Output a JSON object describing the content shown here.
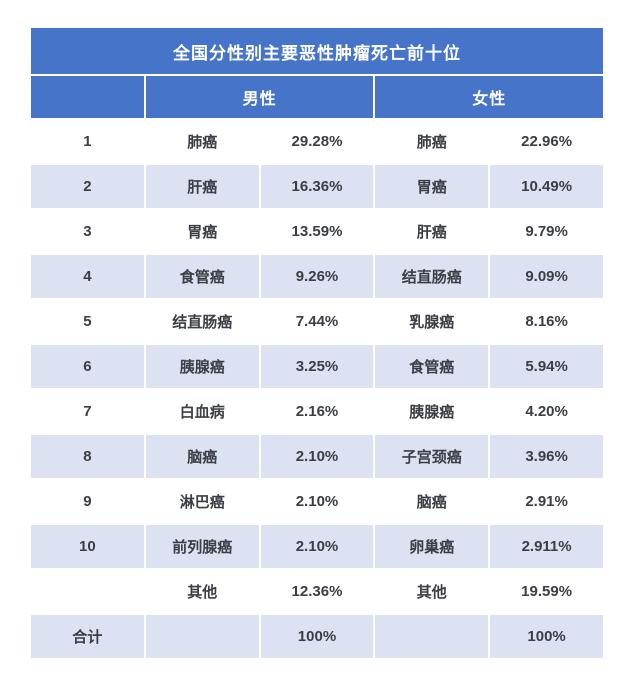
{
  "header": {
    "male": "男性",
    "female": "女性"
  },
  "colors": {
    "header_blue": "#4574C8",
    "row_shade": "#DCE2F1",
    "body_text": "#3B3E45",
    "header_text": "#FFFFFF",
    "page_background": "#FFFFFF"
  },
  "chart_data": {
    "type": "table",
    "title": "全国分性别主要恶性肿瘤死亡前十位",
    "group_columns": [
      "男性",
      "女性"
    ],
    "legend_position": "none",
    "rows": [
      {
        "rank": "1",
        "male_cancer": "肺癌",
        "male_pct": "29.28%",
        "female_cancer": "肺癌",
        "female_pct": "22.96%"
      },
      {
        "rank": "2",
        "male_cancer": "肝癌",
        "male_pct": "16.36%",
        "female_cancer": "胃癌",
        "female_pct": "10.49%"
      },
      {
        "rank": "3",
        "male_cancer": "胃癌",
        "male_pct": "13.59%",
        "female_cancer": "肝癌",
        "female_pct": "9.79%"
      },
      {
        "rank": "4",
        "male_cancer": "食管癌",
        "male_pct": "9.26%",
        "female_cancer": "结直肠癌",
        "female_pct": "9.09%"
      },
      {
        "rank": "5",
        "male_cancer": "结直肠癌",
        "male_pct": "7.44%",
        "female_cancer": "乳腺癌",
        "female_pct": "8.16%"
      },
      {
        "rank": "6",
        "male_cancer": "胰腺癌",
        "male_pct": "3.25%",
        "female_cancer": "食管癌",
        "female_pct": "5.94%"
      },
      {
        "rank": "7",
        "male_cancer": "白血病",
        "male_pct": "2.16%",
        "female_cancer": "胰腺癌",
        "female_pct": "4.20%"
      },
      {
        "rank": "8",
        "male_cancer": "脑癌",
        "male_pct": "2.10%",
        "female_cancer": "子宫颈癌",
        "female_pct": "3.96%"
      },
      {
        "rank": "9",
        "male_cancer": "淋巴癌",
        "male_pct": "2.10%",
        "female_cancer": "脑癌",
        "female_pct": "2.91%"
      },
      {
        "rank": "10",
        "male_cancer": "前列腺癌",
        "male_pct": "2.10%",
        "female_cancer": "卵巢癌",
        "female_pct": "2.911%"
      },
      {
        "rank": "",
        "male_cancer": "其他",
        "male_pct": "12.36%",
        "female_cancer": "其他",
        "female_pct": "19.59%"
      },
      {
        "rank": "合计",
        "male_cancer": "",
        "male_pct": "100%",
        "female_cancer": "",
        "female_pct": "100%"
      }
    ]
  }
}
